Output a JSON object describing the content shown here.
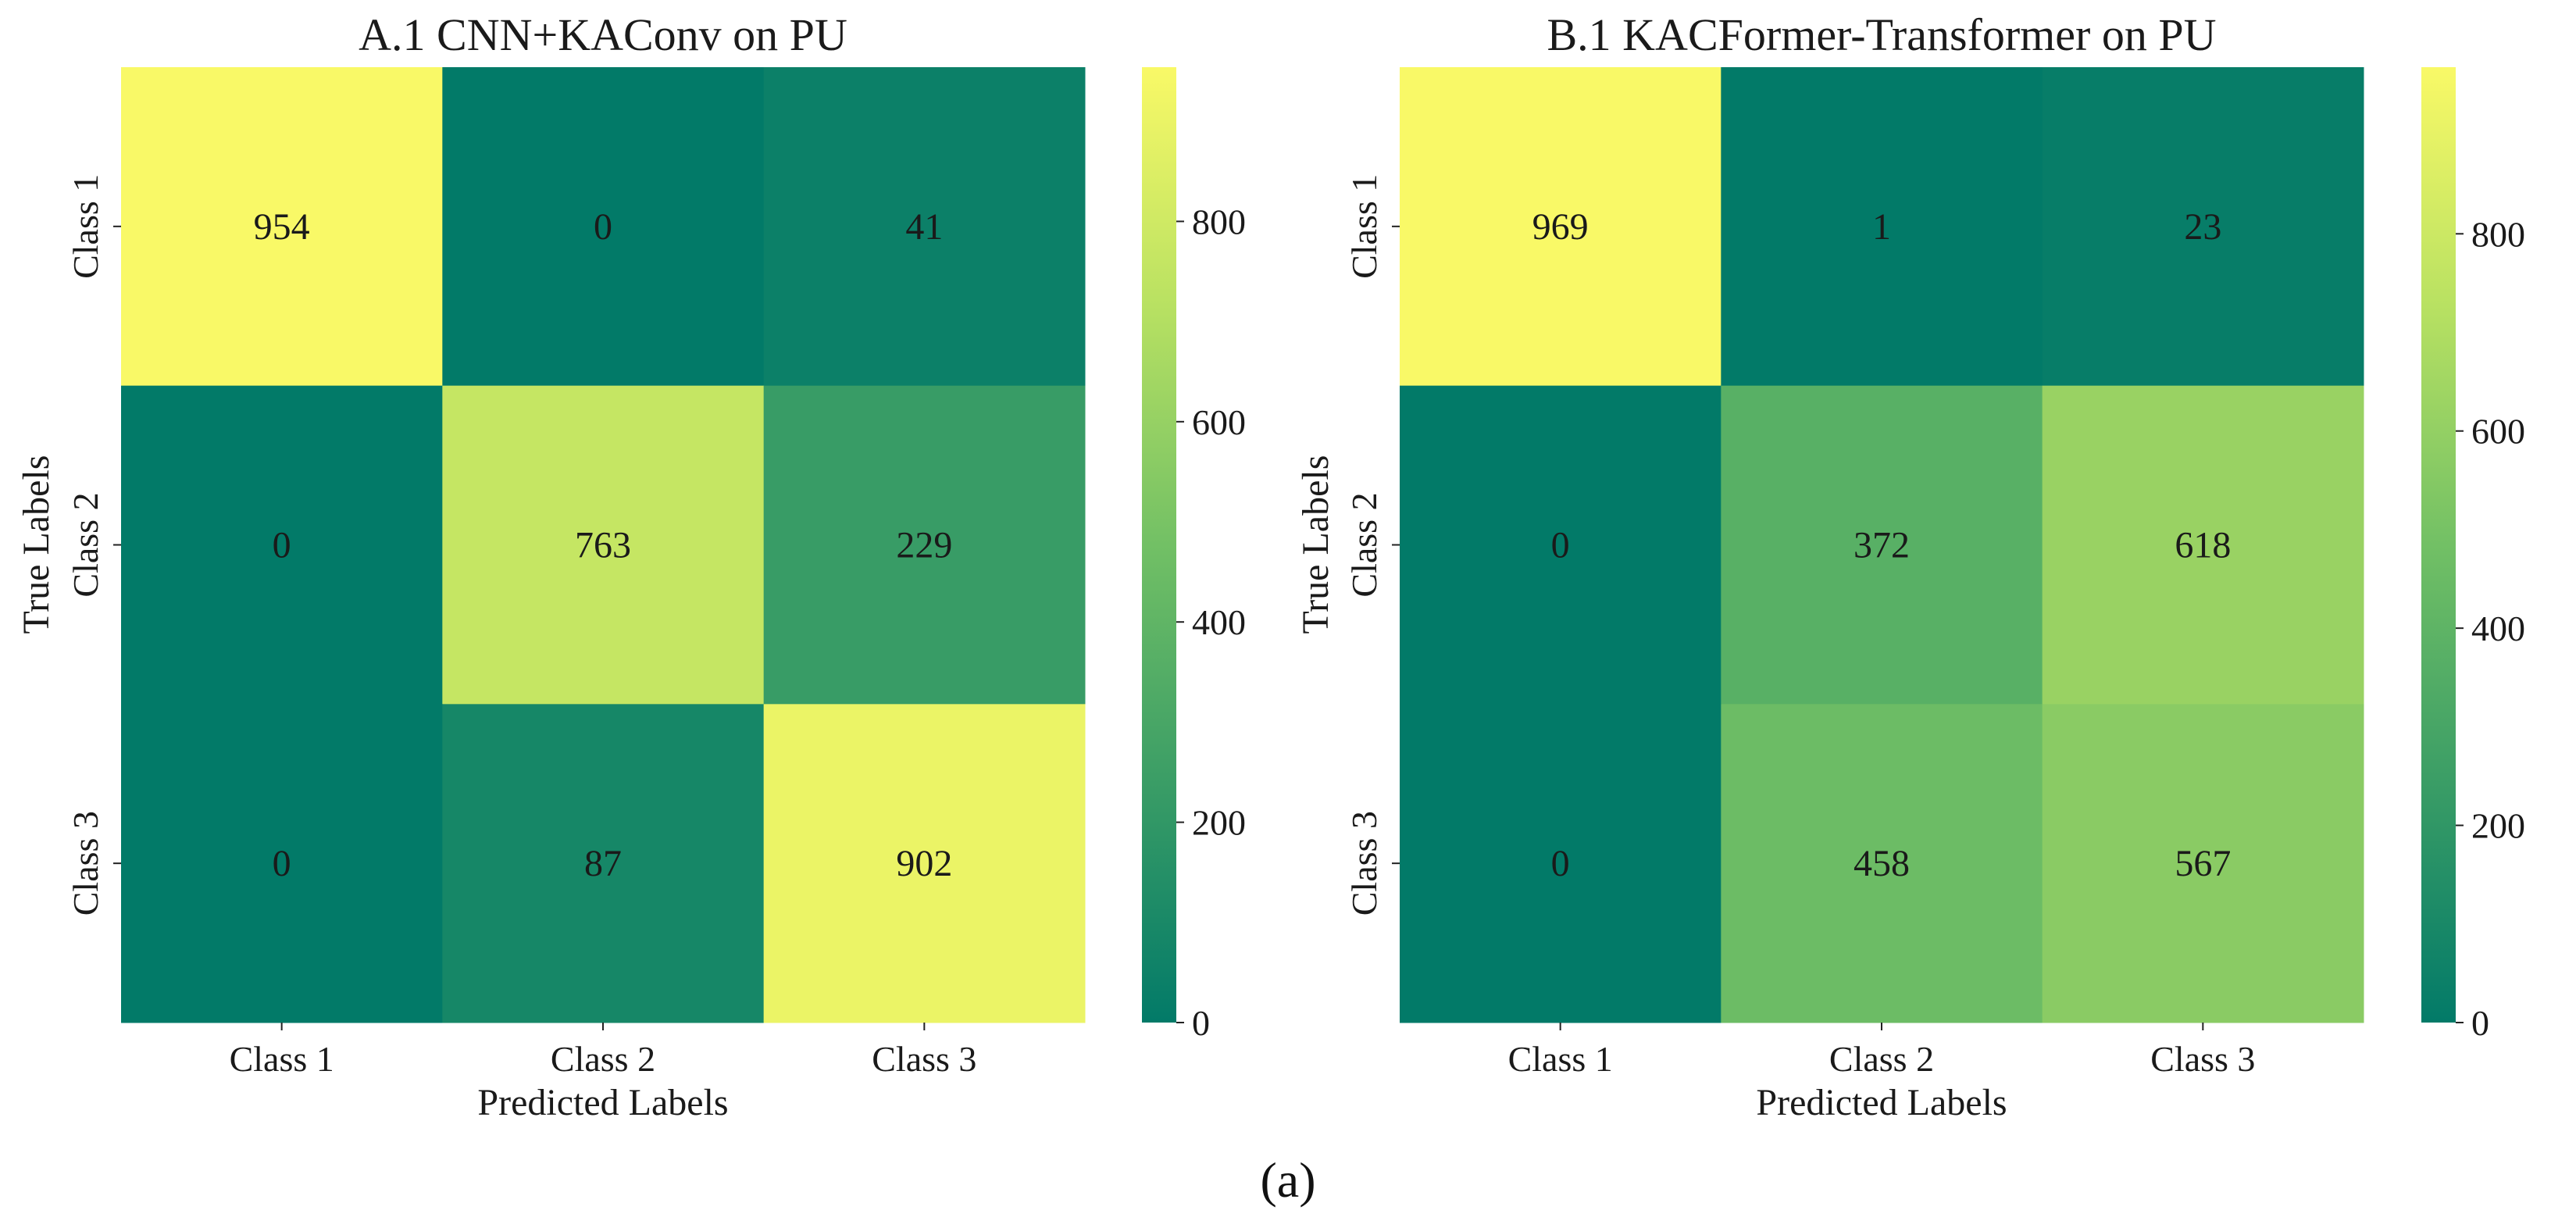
{
  "caption": "(a)",
  "chart_data": [
    {
      "type": "heatmap",
      "title": "A.1 CNN+KAConv on PU",
      "xlabel": "Predicted Labels",
      "ylabel": "True Labels",
      "x_categories": [
        "Class 1",
        "Class 2",
        "Class 3"
      ],
      "y_categories": [
        "Class 1",
        "Class 2",
        "Class 3"
      ],
      "matrix": [
        [
          954,
          0,
          41
        ],
        [
          0,
          763,
          229
        ],
        [
          0,
          87,
          902
        ]
      ],
      "colorbar": {
        "min": 0,
        "max": 954,
        "ticks": [
          0,
          200,
          400,
          600,
          800
        ]
      },
      "colormap": [
        "#027a68",
        "#3a9d66",
        "#72c065",
        "#b8e162",
        "#f9f967"
      ]
    },
    {
      "type": "heatmap",
      "title": "B.1 KACFormer-Transformer on PU",
      "xlabel": "Predicted Labels",
      "ylabel": "True Labels",
      "x_categories": [
        "Class 1",
        "Class 2",
        "Class 3"
      ],
      "y_categories": [
        "Class 1",
        "Class 2",
        "Class 3"
      ],
      "matrix": [
        [
          969,
          1,
          23
        ],
        [
          0,
          372,
          618
        ],
        [
          0,
          458,
          567
        ]
      ],
      "colorbar": {
        "min": 0,
        "max": 969,
        "ticks": [
          0,
          200,
          400,
          600,
          800
        ]
      },
      "colormap": [
        "#027a68",
        "#3a9d66",
        "#72c065",
        "#b8e162",
        "#f9f967"
      ]
    }
  ]
}
